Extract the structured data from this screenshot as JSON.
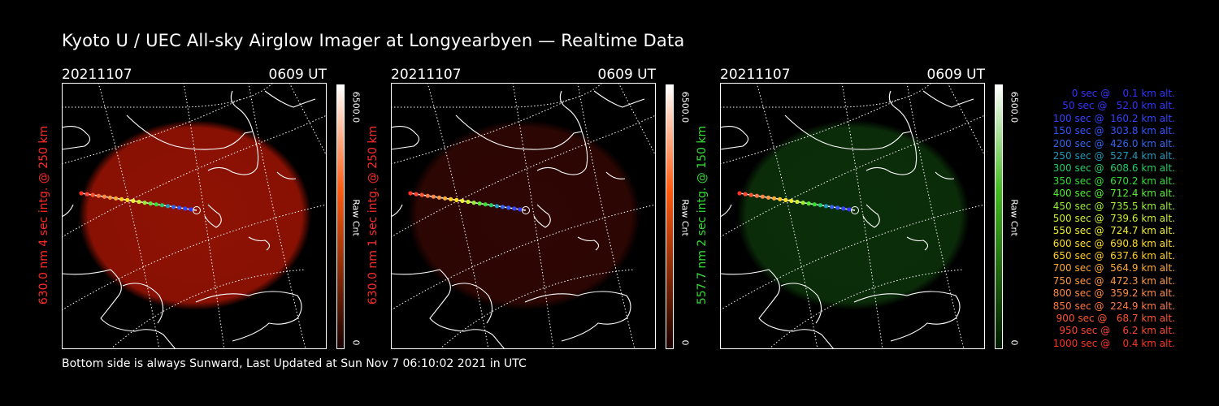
{
  "title": "Kyoto U / UEC All-sky Airglow Imager at Longyearbyen — Realtime Data",
  "footer": "Bottom side is always Sunward, Last Updated at Sun Nov  7 06:10:02 2021 in UTC",
  "panels": [
    {
      "date": "20211107",
      "time": "0609 UT",
      "ylabel": "630.0 nm 4 sec intg. @ 250 km",
      "label_color": "#ff2a2a",
      "glow_color": "#a81505",
      "glow_opacity": 0.85,
      "cbar_max": "6500.0",
      "cbar_min": "0",
      "cbar_unit": "Raw Cnt",
      "cbar_top": "#ffffff",
      "cbar_mid": "#ff5a10",
      "cbar_bottom": "#1a0000"
    },
    {
      "date": "20211107",
      "time": "0609 UT",
      "ylabel": "630.0 nm 1 sec intg. @ 250 km",
      "label_color": "#ff2a2a",
      "glow_color": "#3a0804",
      "glow_opacity": 0.8,
      "cbar_max": "6500.0",
      "cbar_min": "0",
      "cbar_unit": "Raw Cnt",
      "cbar_top": "#ffffff",
      "cbar_mid": "#ff5a10",
      "cbar_bottom": "#1a0000"
    },
    {
      "date": "20211107",
      "time": "0609 UT",
      "ylabel": "557.7 nm 2 sec intg. @ 150 km",
      "label_color": "#33dd33",
      "glow_color": "#0e3a0c",
      "glow_opacity": 0.8,
      "cbar_max": "6500.0",
      "cbar_min": "0",
      "cbar_unit": "Raw Cnt",
      "cbar_top": "#ffffff",
      "cbar_mid": "#44bb22",
      "cbar_bottom": "#001a00"
    }
  ],
  "legend": [
    {
      "text": "0 sec @    0.1 km alt.",
      "color": "#3333ff"
    },
    {
      "text": "50 sec @   52.0 km alt.",
      "color": "#3333ff"
    },
    {
      "text": "100 sec @  160.2 km alt.",
      "color": "#3344ff"
    },
    {
      "text": "150 sec @  303.8 km alt.",
      "color": "#3355ff"
    },
    {
      "text": "200 sec @  426.0 km alt.",
      "color": "#3366ee"
    },
    {
      "text": "250 sec @  527.4 km alt.",
      "color": "#2299bb"
    },
    {
      "text": "300 sec @  608.6 km alt.",
      "color": "#22cc66"
    },
    {
      "text": "350 sec @  670.2 km alt.",
      "color": "#33dd33"
    },
    {
      "text": "400 sec @  712.4 km alt.",
      "color": "#55ee33"
    },
    {
      "text": "450 sec @  735.5 km alt.",
      "color": "#99ee33"
    },
    {
      "text": "500 sec @  739.6 km alt.",
      "color": "#ccee33"
    },
    {
      "text": "550 sec @  724.7 km alt.",
      "color": "#eeee33"
    },
    {
      "text": "600 sec @  690.8 km alt.",
      "color": "#ffdd22"
    },
    {
      "text": "650 sec @  637.6 km alt.",
      "color": "#ffcc22"
    },
    {
      "text": "700 sec @  564.9 km alt.",
      "color": "#ffaa33"
    },
    {
      "text": "750 sec @  472.3 km alt.",
      "color": "#ff9944"
    },
    {
      "text": "800 sec @  359.2 km alt.",
      "color": "#ff8844"
    },
    {
      "text": "850 sec @  224.9 km alt.",
      "color": "#ff7744"
    },
    {
      "text": "900 sec @   68.7 km alt.",
      "color": "#ff5533"
    },
    {
      "text": "950 sec @    6.2 km alt.",
      "color": "#ff4433"
    },
    {
      "text": "1000 sec @    0.4 km alt.",
      "color": "#ff3322"
    }
  ]
}
